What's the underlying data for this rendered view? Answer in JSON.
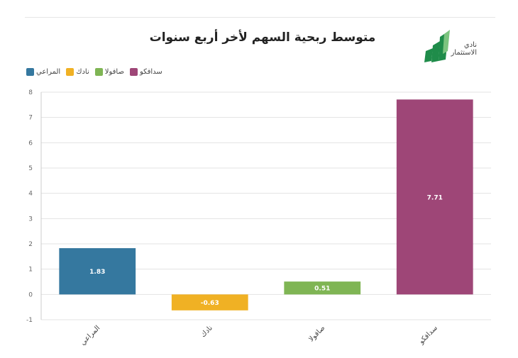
{
  "chart_data": {
    "type": "bar",
    "title": "متوسط ربحية السهم لأخر أربع سنوات",
    "categories": [
      "المراعي",
      "نادك",
      "صافولا",
      "سدافكو"
    ],
    "values": [
      1.83,
      -0.63,
      0.51,
      7.71
    ],
    "data_labels": [
      "1.83",
      "-0.63",
      "0.51",
      "7.71"
    ],
    "colors": [
      "#35789f",
      "#f0b124",
      "#7fb554",
      "#9e4677"
    ],
    "ylim": [
      -1,
      8
    ],
    "yticks": [
      "-1",
      "0",
      "1",
      "2",
      "3",
      "4",
      "5",
      "6",
      "7",
      "8"
    ],
    "grid": true,
    "legend_position": "top-left"
  },
  "legend": [
    {
      "label": "المراعي",
      "color": "#35789f"
    },
    {
      "label": "نادك",
      "color": "#f0b124"
    },
    {
      "label": "صافولا",
      "color": "#7fb554"
    },
    {
      "label": "سدافكو",
      "color": "#9e4677"
    }
  ],
  "logo": {
    "line1": "نادي",
    "line2": "الاستثمار",
    "icon": "investment-club-logo-icon",
    "color": "#1f8c4a"
  }
}
